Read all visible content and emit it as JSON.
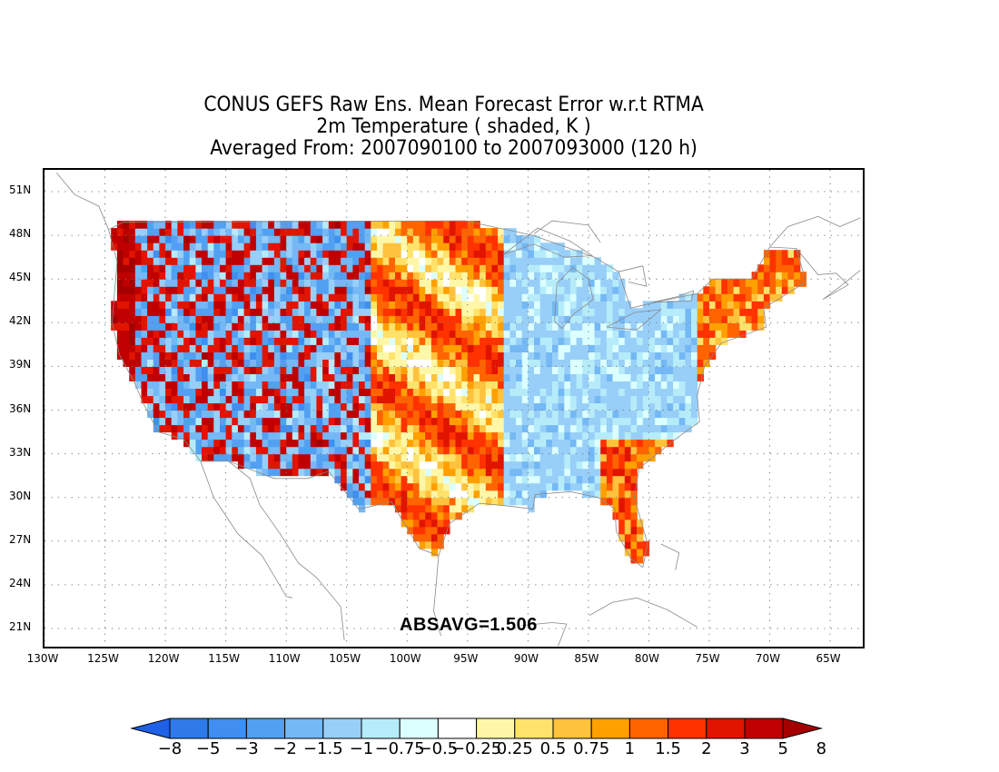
{
  "title": {
    "line1": "CONUS GEFS Raw Ens. Mean Forecast Error w.r.t RTMA",
    "line2": "2m Temperature ( shaded, K )",
    "line3": "Averaged From: 2007090100 to 2007093000 (120 h)"
  },
  "annotation": "ABSAVG=1.506",
  "map": {
    "lat_labels": [
      "51N",
      "48N",
      "45N",
      "42N",
      "39N",
      "36N",
      "33N",
      "30N",
      "27N",
      "24N",
      "21N"
    ],
    "lon_labels": [
      "130W",
      "125W",
      "120W",
      "115W",
      "110W",
      "105W",
      "100W",
      "95W",
      "90W",
      "85W",
      "80W",
      "75W",
      "70W",
      "65W"
    ],
    "lon_range": [
      -130,
      -62
    ],
    "lat_range": [
      19.5,
      52.5
    ],
    "grid": "dotted",
    "regional_bias": [
      {
        "region": "west-coast",
        "sign": "positive",
        "magnitude": "high"
      },
      {
        "region": "rocky-mountains",
        "sign": "mixed",
        "magnitude": "high"
      },
      {
        "region": "great-plains",
        "sign": "positive",
        "magnitude": "moderate"
      },
      {
        "region": "eastern-us",
        "sign": "negative",
        "magnitude": "moderate"
      },
      {
        "region": "southeast-coast",
        "sign": "positive",
        "magnitude": "moderate"
      }
    ]
  },
  "colorbar": {
    "colors": [
      "#1e60e6",
      "#2e7ae8",
      "#3f8ef0",
      "#52a0f2",
      "#74b8f5",
      "#98cff8",
      "#b6ecfa",
      "#dcffff",
      "#ffffff",
      "#fff7a8",
      "#ffe26a",
      "#ffc23c",
      "#ffa000",
      "#ff6400",
      "#ff3200",
      "#e11400",
      "#c00000",
      "#a50000"
    ],
    "labels": [
      "−8",
      "−5",
      "−3",
      "−2",
      "−1.5",
      "−1",
      "−0.75",
      "−0.5",
      "−0.25",
      "0.25",
      "0.5",
      "0.75",
      "1",
      "1.5",
      "2",
      "3",
      "5",
      "8"
    ]
  }
}
